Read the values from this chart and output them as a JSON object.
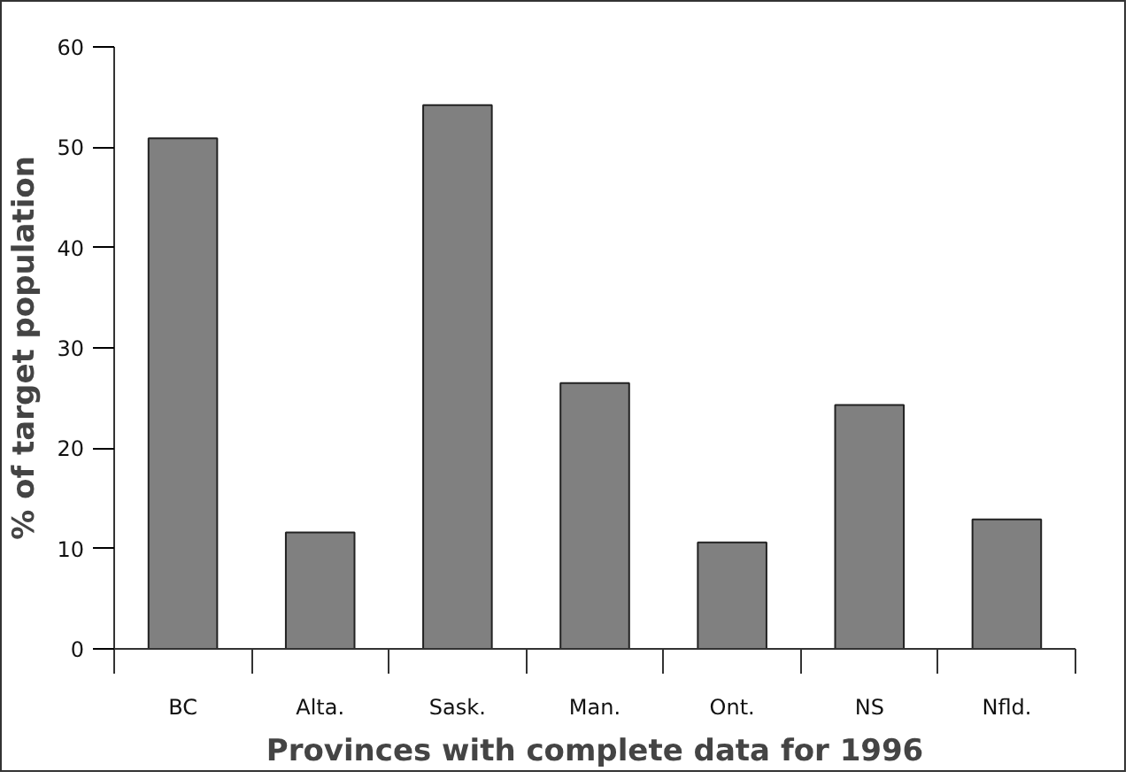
{
  "chart_data": {
    "type": "bar",
    "xlabel": "Provinces with complete data for 1996",
    "ylabel": "% of target population",
    "categories": [
      "BC",
      "Alta.",
      "Sask.",
      "Man.",
      "Ont.",
      "NS",
      "Nfld."
    ],
    "values": [
      50.9,
      11.6,
      54.2,
      26.5,
      10.6,
      24.3,
      12.9
    ],
    "color": "#808080",
    "ylim": [
      0,
      60
    ],
    "yticks": [
      0,
      10,
      20,
      30,
      40,
      50,
      60
    ],
    "grid": false
  }
}
